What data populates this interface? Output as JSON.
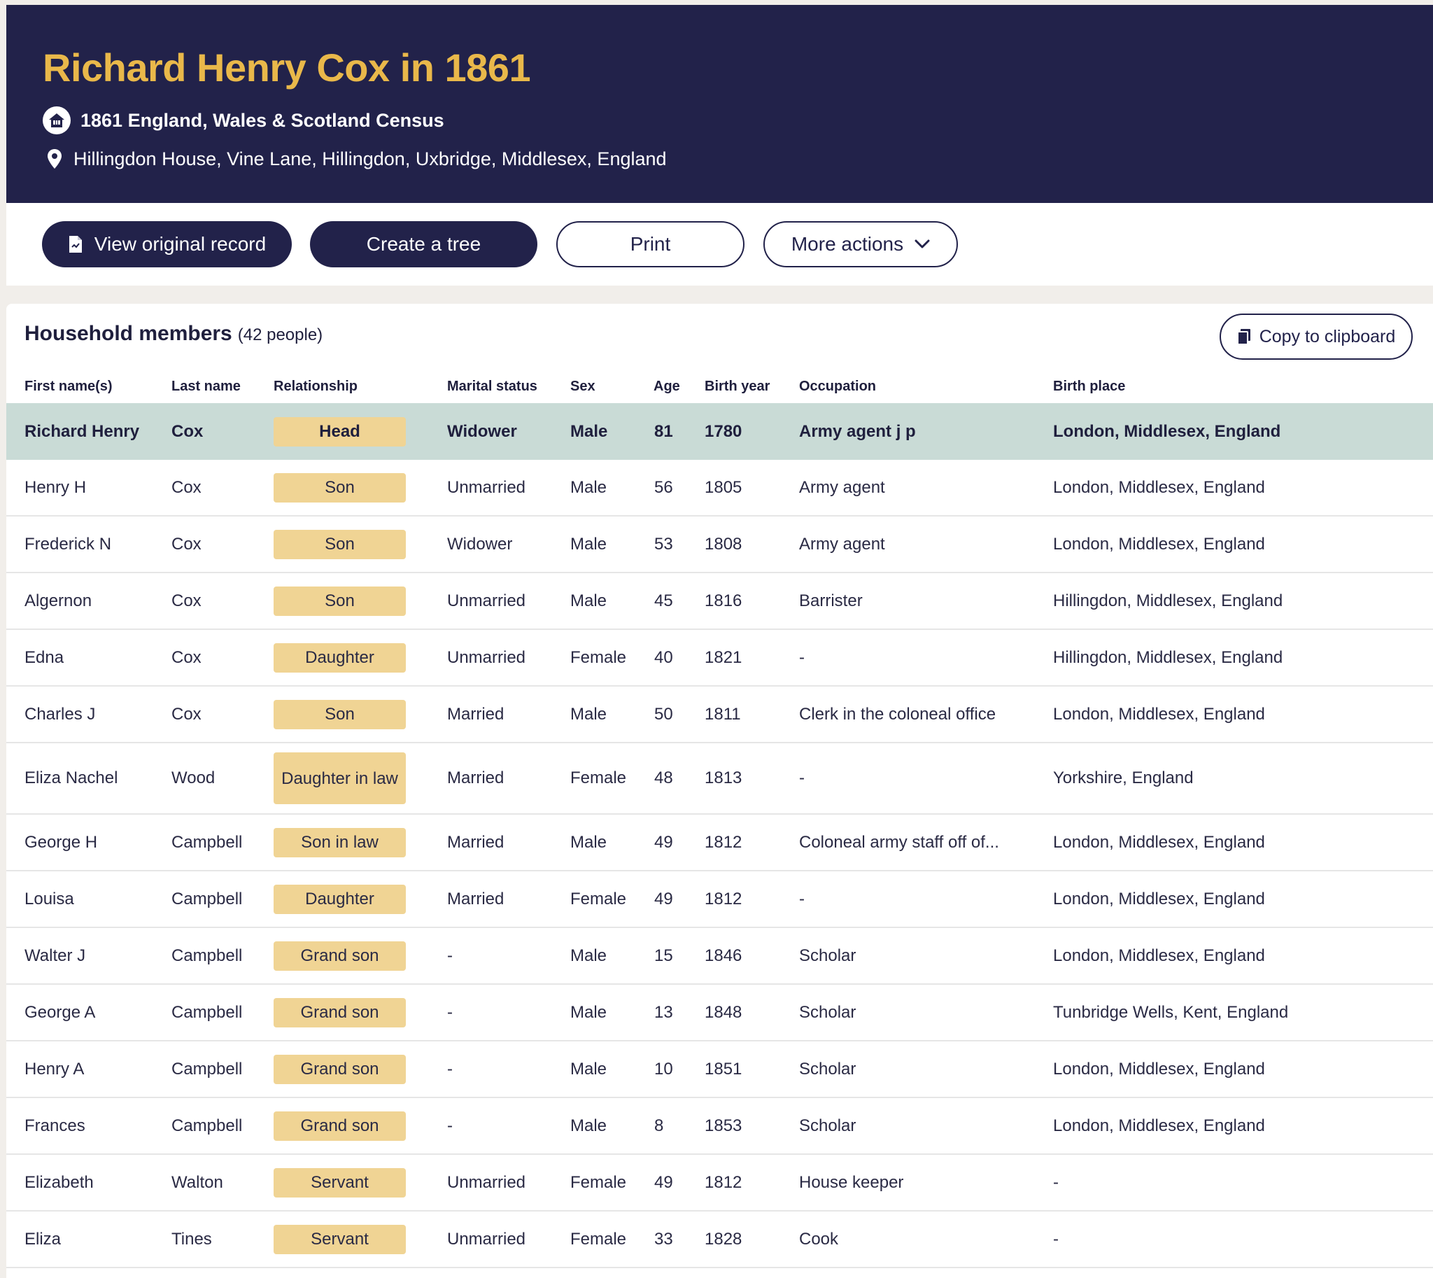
{
  "header": {
    "title": "Richard Henry Cox in 1861",
    "census": "1861 England, Wales & Scotland Census",
    "address": "Hillingdon House, Vine Lane, Hillingdon, Uxbridge, Middlesex, England"
  },
  "actions": {
    "view_original": "View original record",
    "create_tree": "Create a tree",
    "print": "Print",
    "more_actions": "More actions"
  },
  "household": {
    "title": "Household members",
    "count": "(42 people)",
    "copy": "Copy to clipboard",
    "columns": [
      "First name(s)",
      "Last name",
      "Relationship",
      "Marital status",
      "Sex",
      "Age",
      "Birth year",
      "Occupation",
      "Birth place"
    ],
    "rows": [
      {
        "first": "Richard Henry",
        "last": "Cox",
        "rel": "Head",
        "marital": "Widower",
        "sex": "Male",
        "age": "81",
        "year": "1780",
        "occupation": "Army agent j p",
        "place": "London, Middlesex, England"
      },
      {
        "first": "Henry H",
        "last": "Cox",
        "rel": "Son",
        "marital": "Unmarried",
        "sex": "Male",
        "age": "56",
        "year": "1805",
        "occupation": "Army agent",
        "place": "London, Middlesex, England"
      },
      {
        "first": "Frederick N",
        "last": "Cox",
        "rel": "Son",
        "marital": "Widower",
        "sex": "Male",
        "age": "53",
        "year": "1808",
        "occupation": "Army agent",
        "place": "London, Middlesex, England"
      },
      {
        "first": "Algernon",
        "last": "Cox",
        "rel": "Son",
        "marital": "Unmarried",
        "sex": "Male",
        "age": "45",
        "year": "1816",
        "occupation": "Barrister",
        "place": "Hillingdon, Middlesex, England"
      },
      {
        "first": "Edna",
        "last": "Cox",
        "rel": "Daughter",
        "marital": "Unmarried",
        "sex": "Female",
        "age": "40",
        "year": "1821",
        "occupation": "-",
        "place": "Hillingdon, Middlesex, England"
      },
      {
        "first": "Charles J",
        "last": "Cox",
        "rel": "Son",
        "marital": "Married",
        "sex": "Male",
        "age": "50",
        "year": "1811",
        "occupation": "Clerk in the coloneal office",
        "place": "London, Middlesex, England"
      },
      {
        "first": "Eliza Nachel",
        "last": "Wood",
        "rel": "Daughter in law",
        "marital": "Married",
        "sex": "Female",
        "age": "48",
        "year": "1813",
        "occupation": "-",
        "place": "Yorkshire, England"
      },
      {
        "first": "George H",
        "last": "Campbell",
        "rel": "Son in law",
        "marital": "Married",
        "sex": "Male",
        "age": "49",
        "year": "1812",
        "occupation": "Coloneal army staff off of...",
        "place": "London, Middlesex, England"
      },
      {
        "first": "Louisa",
        "last": "Campbell",
        "rel": "Daughter",
        "marital": "Married",
        "sex": "Female",
        "age": "49",
        "year": "1812",
        "occupation": "-",
        "place": "London, Middlesex, England"
      },
      {
        "first": "Walter J",
        "last": "Campbell",
        "rel": "Grand son",
        "marital": "-",
        "sex": "Male",
        "age": "15",
        "year": "1846",
        "occupation": "Scholar",
        "place": "London, Middlesex, England"
      },
      {
        "first": "George A",
        "last": "Campbell",
        "rel": "Grand son",
        "marital": "-",
        "sex": "Male",
        "age": "13",
        "year": "1848",
        "occupation": "Scholar",
        "place": "Tunbridge Wells, Kent, England"
      },
      {
        "first": "Henry A",
        "last": "Campbell",
        "rel": "Grand son",
        "marital": "-",
        "sex": "Male",
        "age": "10",
        "year": "1851",
        "occupation": "Scholar",
        "place": "London, Middlesex, England"
      },
      {
        "first": "Frances",
        "last": "Campbell",
        "rel": "Grand son",
        "marital": "-",
        "sex": "Male",
        "age": "8",
        "year": "1853",
        "occupation": "Scholar",
        "place": "London, Middlesex, England"
      },
      {
        "first": "Elizabeth",
        "last": "Walton",
        "rel": "Servant",
        "marital": "Unmarried",
        "sex": "Female",
        "age": "49",
        "year": "1812",
        "occupation": "House keeper",
        "place": "-"
      },
      {
        "first": "Eliza",
        "last": "Tines",
        "rel": "Servant",
        "marital": "Unmarried",
        "sex": "Female",
        "age": "33",
        "year": "1828",
        "occupation": "Cook",
        "place": "-"
      }
    ]
  },
  "colors": {
    "header_bg": "#22224a",
    "title": "#e9b84a",
    "highlight_row": "#c9dbd6",
    "badge": "#f0d494"
  },
  "icons": [
    "home-icon",
    "location-pin-icon",
    "document-icon",
    "chevron-down-icon",
    "clipboard-icon"
  ]
}
